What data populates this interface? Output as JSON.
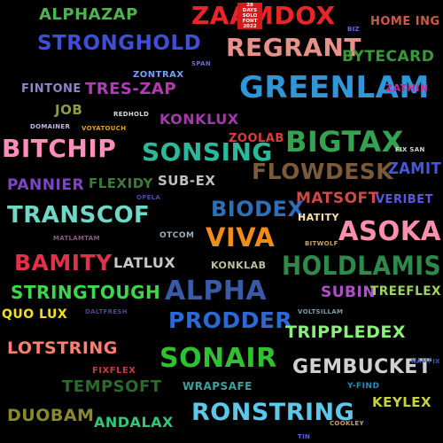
{
  "words": [
    {
      "id": "alphazap",
      "text": "Alphazap",
      "color": "#4fb34f"
    },
    {
      "id": "zaamdox",
      "text": "ZaamDox",
      "color": "#e8262a"
    },
    {
      "id": "homeing",
      "text": "Home Ing",
      "color": "#cc5b44"
    },
    {
      "id": "stronghold",
      "text": "Stronghold",
      "color": "#3e4fd6"
    },
    {
      "id": "regrant",
      "text": "Regrant",
      "color": "#e8918a"
    },
    {
      "id": "biz",
      "text": "Biz",
      "color": "#6b6bd0"
    },
    {
      "id": "bytecard",
      "text": "Bytecard",
      "color": "#3a9a3a"
    },
    {
      "id": "span",
      "text": "Span",
      "color": "#6b6bd0"
    },
    {
      "id": "zontrax",
      "text": "Zontrax",
      "color": "#7ba0f0"
    },
    {
      "id": "greenlam",
      "text": "Greenlam",
      "color": "#2f97d8"
    },
    {
      "id": "fintone",
      "text": "Fintone",
      "color": "#8e84c9"
    },
    {
      "id": "treszap",
      "text": "Tres-Zap",
      "color": "#b43bb4"
    },
    {
      "id": "zathin",
      "text": "Zathin",
      "color": "#c12d9e"
    },
    {
      "id": "job",
      "text": "Job",
      "color": "#8e9d3b"
    },
    {
      "id": "redhold",
      "text": "Redhold",
      "color": "#d9d9d9"
    },
    {
      "id": "konklux",
      "text": "Konklux",
      "color": "#a23aa8"
    },
    {
      "id": "domainer",
      "text": "Domainer",
      "color": "#c8b4e6"
    },
    {
      "id": "voyatouch",
      "text": "Voyatouch",
      "color": "#e0a020"
    },
    {
      "id": "zoolab",
      "text": "Zoolab",
      "color": "#e03a3a"
    },
    {
      "id": "bigtax",
      "text": "Bigtax",
      "color": "#33a352"
    },
    {
      "id": "fixsan",
      "text": "Fix San",
      "color": "#d4d4d4"
    },
    {
      "id": "bitchip",
      "text": "Bitchip",
      "color": "#ff8fb8"
    },
    {
      "id": "sonsing",
      "text": "Sonsing",
      "color": "#2cb89a"
    },
    {
      "id": "zamit",
      "text": "Zamit",
      "color": "#4656e0"
    },
    {
      "id": "flowdesk",
      "text": "Flowdesk",
      "color": "#7a5a3a"
    },
    {
      "id": "pannier",
      "text": "Pannier",
      "color": "#7b45c6"
    },
    {
      "id": "flexidy",
      "text": "Flexidy",
      "color": "#3a7a3a"
    },
    {
      "id": "subex",
      "text": "Sub-Ex",
      "color": "#c0c0c0"
    },
    {
      "id": "opela",
      "text": "Opela",
      "color": "#4a4aa8"
    },
    {
      "id": "matsoft",
      "text": "Matsoft",
      "color": "#ce4a4a"
    },
    {
      "id": "veribet",
      "text": "Veribet",
      "color": "#5858e0"
    },
    {
      "id": "transcof",
      "text": "Transcof",
      "color": "#70d6c6"
    },
    {
      "id": "biodex",
      "text": "Biodex",
      "color": "#2f6fb8"
    },
    {
      "id": "hatity",
      "text": "Hatity",
      "color": "#ffe0a0"
    },
    {
      "id": "matlamtam",
      "text": "Matlamtam",
      "color": "#8a5a8a"
    },
    {
      "id": "otcom",
      "text": "Otcom",
      "color": "#9eb0c0"
    },
    {
      "id": "viva",
      "text": "Viva",
      "color": "#f08c1a"
    },
    {
      "id": "bitwolf",
      "text": "Bitwolf",
      "color": "#c8a070"
    },
    {
      "id": "asoka",
      "text": "Asoka",
      "color": "#ff8fb0"
    },
    {
      "id": "bamity",
      "text": "Bamity",
      "color": "#e0304a"
    },
    {
      "id": "latlux",
      "text": "Latlux",
      "color": "#c8c8c8"
    },
    {
      "id": "konklab",
      "text": "Konklab",
      "color": "#c0c0a0"
    },
    {
      "id": "holdlamis",
      "text": "Holdlamis",
      "color": "#2e8a4a"
    },
    {
      "id": "stringtough",
      "text": "Stringtough",
      "color": "#3ed64a"
    },
    {
      "id": "alpha",
      "text": "Alpha",
      "color": "#3a5aa8"
    },
    {
      "id": "subin",
      "text": "Subin",
      "color": "#b050c8"
    },
    {
      "id": "treeflex",
      "text": "Treeflex",
      "color": "#9ad65a"
    },
    {
      "id": "quolux",
      "text": "Quo Lux",
      "color": "#f0e020"
    },
    {
      "id": "daltfresh",
      "text": "Daltfresh",
      "color": "#4a4a8a"
    },
    {
      "id": "prodder",
      "text": "Prodder",
      "color": "#2a6ad8"
    },
    {
      "id": "voltsillam",
      "text": "Voltsillam",
      "color": "#7a9ab0"
    },
    {
      "id": "trippledex",
      "text": "Trippledex",
      "color": "#8af07a"
    },
    {
      "id": "lotstring",
      "text": "Lotstring",
      "color": "#ff8070"
    },
    {
      "id": "sonair",
      "text": "Sonair",
      "color": "#30c030"
    },
    {
      "id": "gembucket",
      "text": "Gembucket",
      "color": "#d0d0d0"
    },
    {
      "id": "namfix",
      "text": "Namfix",
      "color": "#3a5ab8"
    },
    {
      "id": "fixflex",
      "text": "Fixflex",
      "color": "#c04040"
    },
    {
      "id": "tempsoft",
      "text": "Tempsoft",
      "color": "#2a6a2a"
    },
    {
      "id": "wrapsafe",
      "text": "Wrapsafe",
      "color": "#3aa0a0"
    },
    {
      "id": "ybfind",
      "text": "Y-find",
      "color": "#2a8ab8"
    },
    {
      "id": "keylex",
      "text": "Keylex",
      "color": "#c8d03a"
    },
    {
      "id": "duobam",
      "text": "Duobam",
      "color": "#8a8a2a"
    },
    {
      "id": "andalax",
      "text": "Andalax",
      "color": "#30c878"
    },
    {
      "id": "ronstring",
      "text": "Ronstring",
      "color": "#5ac8e8"
    },
    {
      "id": "cookley",
      "text": "Cookley",
      "color": "#c8a060"
    },
    {
      "id": "tin",
      "text": "Tin",
      "color": "#6060d0"
    }
  ],
  "badge": {
    "line1": "28",
    "line2": "DAYS",
    "line3": "SOLO",
    "line4": "FONT",
    "line5": "2022",
    "color": "#d41b1b"
  }
}
